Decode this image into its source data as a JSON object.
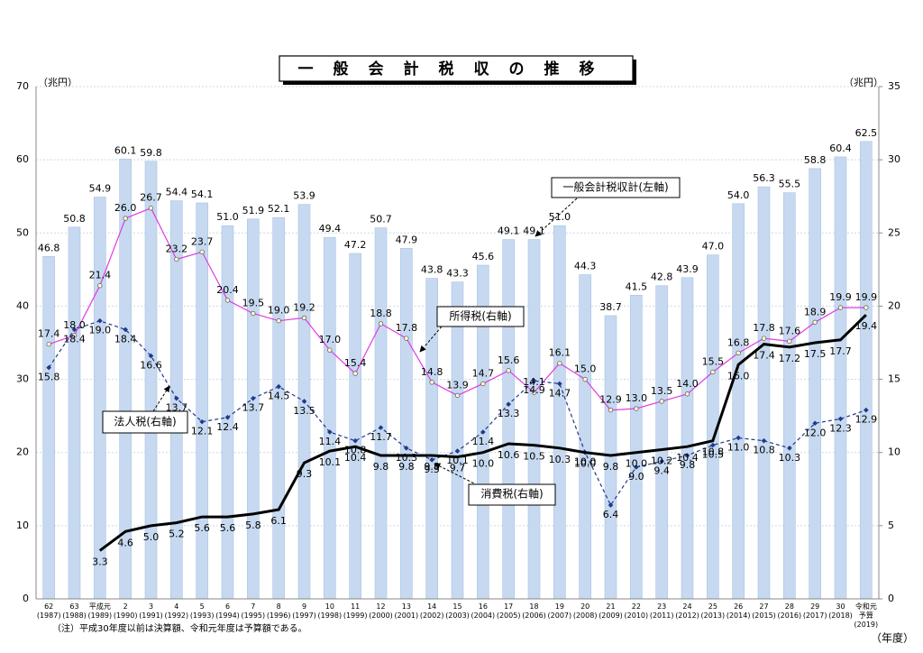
{
  "chart_data": {
    "type": "bar",
    "title": "一般会計税収の推移",
    "ylabel": "（兆円）",
    "y2label": "（兆円）",
    "xlabel": "（年度）",
    "note": "（注）平成30年度以前は決算額、令和元年度は予算額である。",
    "categories": [
      "62",
      "63",
      "平成元",
      "2",
      "3",
      "4",
      "5",
      "6",
      "7",
      "8",
      "9",
      "10",
      "11",
      "12",
      "13",
      "14",
      "15",
      "16",
      "17",
      "18",
      "19",
      "20",
      "21",
      "22",
      "23",
      "24",
      "25",
      "26",
      "27",
      "28",
      "29",
      "30",
      "令和元 予算"
    ],
    "category_years": [
      "(1987)",
      "(1988)",
      "(1989)",
      "(1990)",
      "(1991)",
      "(1992)",
      "(1993)",
      "(1994)",
      "(1995)",
      "(1996)",
      "(1997)",
      "(1998)",
      "(1999)",
      "(2000)",
      "(2001)",
      "(2002)",
      "(2003)",
      "(2004)",
      "(2005)",
      "(2006)",
      "(2007)",
      "(2008)",
      "(2009)",
      "(2010)",
      "(2011)",
      "(2012)",
      "(2013)",
      "(2014)",
      "(2015)",
      "(2016)",
      "(2017)",
      "(2018)",
      "(2019)"
    ],
    "ylim": [
      0,
      70
    ],
    "yticks": [
      0,
      10,
      20,
      30,
      40,
      50,
      60,
      70
    ],
    "y2lim": [
      0,
      35
    ],
    "y2ticks": [
      0,
      5,
      10,
      15,
      20,
      25,
      30,
      35
    ],
    "grid": true,
    "series": [
      {
        "name": "一般会計税収計(左軸)",
        "type": "bar",
        "color": "#c6d9f0",
        "values": [
          46.8,
          50.8,
          54.9,
          60.1,
          59.8,
          54.4,
          54.1,
          51.0,
          51.9,
          52.1,
          53.9,
          49.4,
          47.2,
          50.7,
          47.9,
          43.8,
          43.3,
          45.6,
          49.1,
          49.1,
          51.0,
          44.3,
          38.7,
          41.5,
          42.8,
          43.9,
          47.0,
          54.0,
          56.3,
          55.5,
          58.8,
          60.4,
          62.5
        ],
        "value_labels": [
          "46.8",
          "50.8",
          "54.9",
          "60.1",
          "59.8",
          "54.4",
          "54.1",
          "51.0",
          "51.9",
          "52.1",
          "53.9",
          "49.4",
          "47.2",
          "50.7",
          "47.9",
          "43.8",
          "43.3",
          "45.6",
          "49.1",
          "49.1",
          "51.0",
          "44.3",
          "38.7",
          "41.5",
          "42.8",
          "43.9",
          "47.0",
          "54.0",
          "56.3",
          "55.5",
          "58.8",
          "60.4",
          "62.5"
        ]
      },
      {
        "name": "所得税(右軸)",
        "type": "line",
        "axis": "y2",
        "color": "#e03ce0",
        "marker": "circle",
        "values": [
          17.4,
          18.0,
          21.4,
          26.0,
          26.7,
          23.2,
          23.7,
          20.4,
          19.5,
          19.0,
          19.2,
          17.0,
          15.4,
          18.8,
          17.8,
          14.8,
          13.9,
          14.7,
          15.6,
          14.1,
          16.1,
          15.0,
          12.9,
          13.0,
          13.5,
          14.0,
          15.5,
          16.8,
          17.8,
          17.6,
          18.9,
          19.9,
          19.9
        ],
        "value_labels": [
          "17.4",
          "18.0",
          "21.4",
          "26.0",
          "26.7",
          "23.2",
          "23.7",
          "20.4",
          "19.5",
          "19.0",
          "19.2",
          "17.0",
          "15.4",
          "18.8",
          "17.8",
          "14.8",
          "13.9",
          "14.7",
          "15.6",
          "14.1",
          "16.1",
          "15.0",
          "12.9",
          "13.0",
          "13.5",
          "14.0",
          "15.5",
          "16.8",
          "17.8",
          "17.6",
          "18.9",
          "19.9",
          "19.9"
        ]
      },
      {
        "name": "法人税(右軸)",
        "type": "line",
        "axis": "y2",
        "color": "#1f3a8a",
        "marker": "diamond",
        "dashed": true,
        "values": [
          15.8,
          18.4,
          19.0,
          18.4,
          16.6,
          13.7,
          12.1,
          12.4,
          13.7,
          14.5,
          13.5,
          11.4,
          10.8,
          11.7,
          10.3,
          9.5,
          10.1,
          11.4,
          13.3,
          14.9,
          14.7,
          10.0,
          6.4,
          9.0,
          9.4,
          9.8,
          10.5,
          11.0,
          10.8,
          10.3,
          12.0,
          12.3,
          12.9
        ],
        "value_labels": [
          "15.8",
          "18.4",
          "19.0",
          "18.4",
          "16.6",
          "13.7",
          "12.1",
          "12.4",
          "13.7",
          "14.5",
          "13.5",
          "11.4",
          "10.8",
          "11.7",
          "10.3",
          "9.5",
          "10.1",
          "11.4",
          "13.3",
          "14.9",
          "14.7",
          "10.0",
          "6.4",
          "9.0",
          "9.4",
          "9.8",
          "10.5",
          "11.0",
          "10.8",
          "10.3",
          "12.0",
          "12.3",
          "12.9"
        ]
      },
      {
        "name": "消費税(右軸)",
        "type": "line",
        "axis": "y2",
        "color": "#000000",
        "marker": "none",
        "width": 3,
        "values": [
          null,
          null,
          3.3,
          4.6,
          5.0,
          5.2,
          5.6,
          5.6,
          5.8,
          6.1,
          9.3,
          10.1,
          10.4,
          9.8,
          9.8,
          9.8,
          9.7,
          10.0,
          10.6,
          10.5,
          10.3,
          10.0,
          9.8,
          10.0,
          10.2,
          10.4,
          10.8,
          16.0,
          17.4,
          17.2,
          17.5,
          17.7,
          19.4
        ],
        "value_labels": [
          null,
          null,
          "3.3",
          "4.6",
          "5.0",
          "5.2",
          "5.6",
          "5.6",
          "5.8",
          "6.1",
          "9.3",
          "10.1",
          "10.4",
          "9.8",
          "9.8",
          "9.8",
          "9.7",
          "10.0",
          "10.6",
          "10.5",
          "10.3",
          "10.0",
          "9.8",
          "10.0",
          "10.2",
          "10.4",
          "10.8",
          "16.0",
          "17.4",
          "17.2",
          "17.5",
          "17.7",
          "19.4"
        ]
      }
    ]
  }
}
